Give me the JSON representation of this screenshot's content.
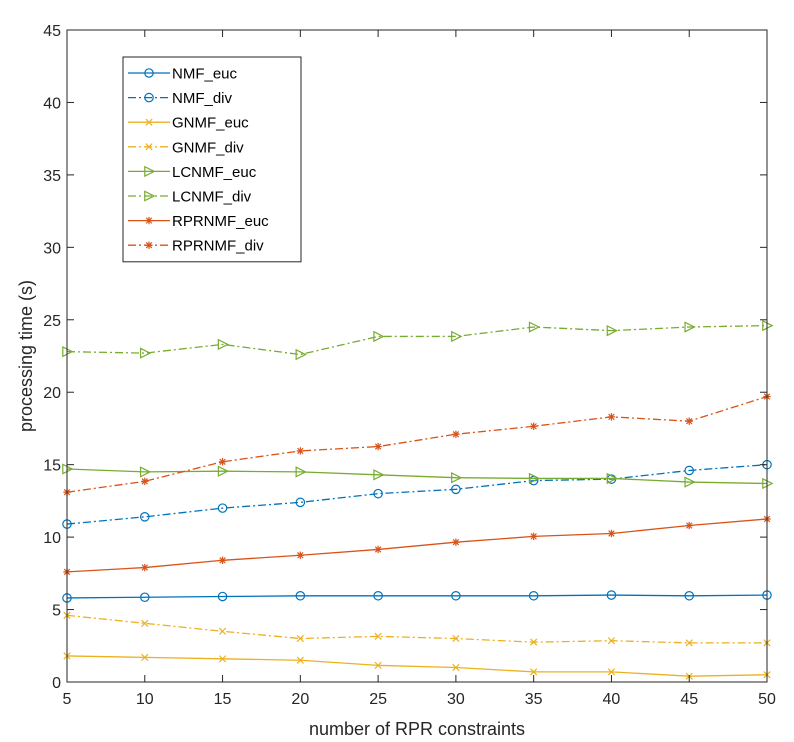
{
  "chart_data": {
    "type": "line",
    "title": "",
    "xlabel": "number of RPR constraints",
    "ylabel": "processing time (s)",
    "xlim": [
      5,
      50
    ],
    "ylim": [
      0,
      45
    ],
    "xticks": [
      5,
      10,
      15,
      20,
      25,
      30,
      35,
      40,
      45,
      50
    ],
    "yticks": [
      0,
      5,
      10,
      15,
      20,
      25,
      30,
      35,
      40,
      45
    ],
    "grid": false,
    "legend_position": "top-left",
    "x": [
      5,
      10,
      15,
      20,
      25,
      30,
      35,
      40,
      45,
      50
    ],
    "series": [
      {
        "name": "NMF_euc",
        "color": "#0072BD",
        "line": "solid",
        "marker": "circle",
        "values": [
          5.8,
          5.85,
          5.9,
          5.95,
          5.95,
          5.95,
          5.95,
          6.0,
          5.95,
          6.0
        ]
      },
      {
        "name": "NMF_div",
        "color": "#0072BD",
        "line": "dashdot",
        "marker": "circle",
        "values": [
          10.9,
          11.4,
          12.0,
          12.4,
          13.0,
          13.3,
          13.9,
          14.0,
          14.6,
          15.0
        ]
      },
      {
        "name": "GNMF_euc",
        "color": "#EDB120",
        "line": "solid",
        "marker": "x",
        "values": [
          1.8,
          1.7,
          1.6,
          1.5,
          1.15,
          1.0,
          0.7,
          0.7,
          0.4,
          0.5
        ]
      },
      {
        "name": "GNMF_div",
        "color": "#EDB120",
        "line": "dashdot",
        "marker": "x",
        "values": [
          4.6,
          4.05,
          3.5,
          3.0,
          3.15,
          3.0,
          2.75,
          2.85,
          2.7,
          2.7
        ]
      },
      {
        "name": "LCNMF_euc",
        "color": "#77AC30",
        "line": "solid",
        "marker": "triangle-right",
        "values": [
          14.7,
          14.5,
          14.55,
          14.5,
          14.3,
          14.1,
          14.05,
          14.05,
          13.8,
          13.7
        ]
      },
      {
        "name": "LCNMF_div",
        "color": "#77AC30",
        "line": "dashdot",
        "marker": "triangle-right",
        "values": [
          22.8,
          22.7,
          23.3,
          22.6,
          23.85,
          23.85,
          24.5,
          24.25,
          24.5,
          24.6
        ]
      },
      {
        "name": "RPRNMF_euc",
        "color": "#D95319",
        "line": "solid",
        "marker": "asterisk",
        "values": [
          7.6,
          7.9,
          8.4,
          8.75,
          9.15,
          9.65,
          10.05,
          10.25,
          10.8,
          11.25
        ]
      },
      {
        "name": "RPRNMF_div",
        "color": "#D95319",
        "line": "dashdot",
        "marker": "asterisk",
        "values": [
          13.1,
          13.85,
          15.2,
          15.95,
          16.25,
          17.1,
          17.65,
          18.3,
          18.0,
          19.7
        ]
      }
    ]
  }
}
